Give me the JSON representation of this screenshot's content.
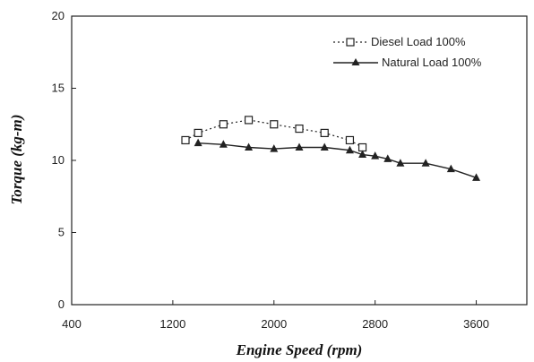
{
  "chart_data": {
    "type": "line",
    "xlabel": "Engine Speed (rpm)",
    "ylabel": "Torque (kg-m)",
    "xlim": [
      400,
      4000
    ],
    "ylim": [
      0,
      20
    ],
    "xticks": [
      400,
      1200,
      2000,
      2800,
      3600
    ],
    "yticks": [
      0,
      5,
      10,
      15,
      20
    ],
    "grid": false,
    "legend_position": "top-right",
    "series": [
      {
        "name": "Diesel Load 100%",
        "marker": "square-open",
        "line_style": "dotted",
        "color": "#222222",
        "x": [
          1300,
          1400,
          1600,
          1800,
          2000,
          2200,
          2400,
          2600,
          2700
        ],
        "y": [
          11.4,
          11.9,
          12.5,
          12.8,
          12.5,
          12.2,
          11.9,
          11.4,
          10.9
        ]
      },
      {
        "name": "Natural Load 100%",
        "marker": "triangle-filled",
        "line_style": "solid",
        "color": "#222222",
        "x": [
          1400,
          1600,
          1800,
          2000,
          2200,
          2400,
          2600,
          2700,
          2800,
          2900,
          3000,
          3200,
          3400,
          3600
        ],
        "y": [
          11.2,
          11.1,
          10.9,
          10.8,
          10.9,
          10.9,
          10.7,
          10.4,
          10.3,
          10.1,
          9.8,
          9.8,
          9.4,
          8.8
        ]
      }
    ]
  }
}
